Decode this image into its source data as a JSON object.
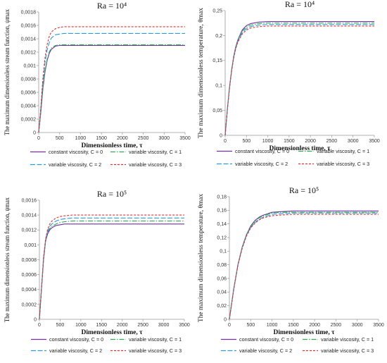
{
  "colors": {
    "c0": "#7030A0",
    "c1": "#33AA55",
    "c2": "#2E9BD6",
    "c3": "#E03030",
    "axis": "#999999"
  },
  "chart_data": [
    {
      "type": "line",
      "title": "Ra = 10⁴",
      "xlabel": "Dimensionless time, τ",
      "ylabel": "The maximum dimensionless stream function, ψmax",
      "xlim": [
        0,
        3500
      ],
      "ylim": [
        0,
        0.0018
      ],
      "xticks": [
        "0",
        "500",
        "1000",
        "1500",
        "2000",
        "2500",
        "3000",
        "3500"
      ],
      "yticks": [
        "0",
        "0,0002",
        "0,0004",
        "0,0006",
        "0,0008",
        "0,001",
        "0,0012",
        "0,0014",
        "0,0016",
        "0,0018"
      ],
      "legend": "bottom",
      "x": [
        0,
        50,
        100,
        150,
        200,
        250,
        300,
        400,
        500,
        600,
        800,
        1000,
        1500,
        2000,
        2500,
        3000,
        3500
      ],
      "series": [
        {
          "name": "constant viscosity, C = 0",
          "values": [
            0,
            0.0003,
            0.00065,
            0.0009,
            0.00107,
            0.00118,
            0.00124,
            0.00129,
            0.0013,
            0.0013,
            0.0013,
            0.0013,
            0.0013,
            0.0013,
            0.0013,
            0.0013,
            0.0013
          ]
        },
        {
          "name": "variable viscosity, C = 1",
          "values": [
            0,
            0.00031,
            0.00067,
            0.00092,
            0.00109,
            0.0012,
            0.00126,
            0.0013,
            0.00131,
            0.00131,
            0.00131,
            0.00131,
            0.00131,
            0.00131,
            0.00131,
            0.00131,
            0.00131
          ]
        },
        {
          "name": "variable viscosity, C = 2",
          "values": [
            0,
            0.00035,
            0.00075,
            0.00104,
            0.00123,
            0.00134,
            0.00141,
            0.00146,
            0.00147,
            0.00148,
            0.00148,
            0.00148,
            0.00148,
            0.00148,
            0.00148,
            0.00148,
            0.00148
          ]
        },
        {
          "name": "variable viscosity, C = 3",
          "values": [
            0,
            0.00037,
            0.0008,
            0.00111,
            0.00131,
            0.00143,
            0.0015,
            0.00155,
            0.00157,
            0.00158,
            0.00158,
            0.00158,
            0.00158,
            0.00158,
            0.00158,
            0.00158,
            0.00158
          ]
        }
      ]
    },
    {
      "type": "line",
      "title": "Ra = 10⁴",
      "xlabel": "Dimensionless time, τ",
      "ylabel": "The maximum dimensionless temperature, θmax",
      "xlim": [
        0,
        3500
      ],
      "ylim": [
        0,
        0.25
      ],
      "xticks": [
        "0",
        "500",
        "1000",
        "1500",
        "2000",
        "2500",
        "3000",
        "3500"
      ],
      "yticks": [
        "0",
        "0,05",
        "0,1",
        "0,15",
        "0,2",
        "0,25"
      ],
      "legend": "bottom",
      "x": [
        0,
        50,
        100,
        150,
        200,
        250,
        300,
        400,
        500,
        600,
        800,
        1000,
        1500,
        2000,
        2500,
        3000,
        3500
      ],
      "series": [
        {
          "name": "constant viscosity, C = 0",
          "values": [
            0,
            0.05,
            0.095,
            0.13,
            0.158,
            0.178,
            0.192,
            0.211,
            0.22,
            0.224,
            0.227,
            0.228,
            0.228,
            0.228,
            0.228,
            0.228,
            0.228
          ]
        },
        {
          "name": "variable viscosity, C = 1",
          "values": [
            0,
            0.05,
            0.095,
            0.13,
            0.157,
            0.177,
            0.191,
            0.209,
            0.217,
            0.221,
            0.224,
            0.225,
            0.225,
            0.225,
            0.225,
            0.225,
            0.225
          ]
        },
        {
          "name": "variable viscosity, C = 2",
          "values": [
            0,
            0.05,
            0.094,
            0.129,
            0.156,
            0.175,
            0.189,
            0.206,
            0.214,
            0.218,
            0.221,
            0.222,
            0.222,
            0.222,
            0.222,
            0.222,
            0.222
          ]
        },
        {
          "name": "variable viscosity, C = 3",
          "values": [
            0,
            0.05,
            0.094,
            0.128,
            0.155,
            0.174,
            0.187,
            0.203,
            0.211,
            0.215,
            0.218,
            0.219,
            0.219,
            0.219,
            0.219,
            0.219,
            0.219
          ]
        }
      ]
    },
    {
      "type": "line",
      "title": "Ra = 10⁵",
      "xlabel": "Dimensionless time, τ",
      "ylabel": "The maximum dimensionless stream function, ψmax",
      "xlim": [
        0,
        3500
      ],
      "ylim": [
        0,
        0.0016
      ],
      "xticks": [
        "0",
        "500",
        "1000",
        "1500",
        "2000",
        "2500",
        "3000",
        "3500"
      ],
      "yticks": [
        "0",
        "0,0002",
        "0,0004",
        "0,0006",
        "0,0008",
        "0,001",
        "0,0012",
        "0,0014",
        "0,0016"
      ],
      "legend": "bottom",
      "x": [
        0,
        50,
        100,
        150,
        200,
        250,
        300,
        400,
        500,
        600,
        800,
        1000,
        1500,
        2000,
        2500,
        3000,
        3500
      ],
      "series": [
        {
          "name": "constant viscosity, C = 0",
          "values": [
            0,
            0.0004,
            0.0008,
            0.00105,
            0.00115,
            0.0012,
            0.00123,
            0.00126,
            0.00127,
            0.00128,
            0.00128,
            0.00128,
            0.00128,
            0.00128,
            0.00128,
            0.00128,
            0.00128
          ]
        },
        {
          "name": "variable viscosity, C = 1",
          "values": [
            0,
            0.0004,
            0.00081,
            0.00106,
            0.00117,
            0.00122,
            0.00125,
            0.00128,
            0.0013,
            0.00131,
            0.00132,
            0.00132,
            0.00132,
            0.00132,
            0.00132,
            0.00132,
            0.00132
          ]
        },
        {
          "name": "variable viscosity, C = 2",
          "values": [
            0,
            0.00041,
            0.00082,
            0.00107,
            0.00119,
            0.00125,
            0.00128,
            0.00132,
            0.00134,
            0.00135,
            0.00136,
            0.00136,
            0.00136,
            0.00136,
            0.00136,
            0.00136,
            0.00136
          ]
        },
        {
          "name": "variable viscosity, C = 3",
          "values": [
            0,
            0.00041,
            0.00083,
            0.00108,
            0.00121,
            0.00128,
            0.00132,
            0.00136,
            0.00138,
            0.00139,
            0.0014,
            0.0014,
            0.0014,
            0.0014,
            0.0014,
            0.0014,
            0.0014
          ]
        }
      ]
    },
    {
      "type": "line",
      "title": "Ra = 10⁵",
      "xlabel": "Dimensionless time, τ",
      "ylabel": "The maximum dimensionless temperature, θmax",
      "xlim": [
        0,
        3500
      ],
      "ylim": [
        0,
        0.18
      ],
      "xticks": [
        "0",
        "500",
        "1000",
        "1500",
        "2000",
        "2500",
        "3000",
        "3500"
      ],
      "yticks": [
        "0",
        "0,02",
        "0,04",
        "0,06",
        "0,08",
        "0,1",
        "0,12",
        "0,14",
        "0,16",
        "0,18"
      ],
      "legend": "bottom",
      "x": [
        0,
        100,
        200,
        300,
        400,
        500,
        600,
        700,
        800,
        1000,
        1200,
        1500,
        2000,
        2500,
        3000,
        3500
      ],
      "series": [
        {
          "name": "constant viscosity, C = 0",
          "values": [
            0,
            0.044,
            0.08,
            0.106,
            0.124,
            0.137,
            0.145,
            0.15,
            0.153,
            0.157,
            0.158,
            0.159,
            0.159,
            0.159,
            0.159,
            0.159
          ]
        },
        {
          "name": "variable viscosity, C = 1",
          "values": [
            0,
            0.044,
            0.08,
            0.106,
            0.124,
            0.136,
            0.144,
            0.149,
            0.152,
            0.156,
            0.157,
            0.157,
            0.157,
            0.157,
            0.157,
            0.157
          ]
        },
        {
          "name": "variable viscosity, C = 2",
          "values": [
            0,
            0.044,
            0.08,
            0.105,
            0.123,
            0.135,
            0.142,
            0.147,
            0.15,
            0.154,
            0.155,
            0.156,
            0.156,
            0.156,
            0.156,
            0.156
          ]
        },
        {
          "name": "variable viscosity, C = 3",
          "values": [
            0,
            0.043,
            0.079,
            0.104,
            0.122,
            0.134,
            0.141,
            0.146,
            0.149,
            0.152,
            0.153,
            0.154,
            0.154,
            0.154,
            0.154,
            0.154
          ]
        }
      ]
    }
  ]
}
